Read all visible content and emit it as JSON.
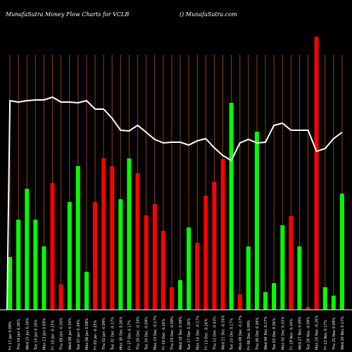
{
  "header": {
    "title": "MunafaSutra  Money Flow  Charts for VCLB",
    "credit": "() MunafaSutra.com"
  },
  "colors": {
    "background": "#000000",
    "bull": "#00ff00",
    "bear": "#ff0000",
    "grid": "#8B4513",
    "line": "#ffffff",
    "axis": "#ffffff"
  },
  "chart_data": {
    "type": "bar",
    "grid": true,
    "bars": [
      {
        "label": "Fri 17 Jan 0.09%",
        "value": 75,
        "dir": "up"
      },
      {
        "label": "Thu 16 Jan 0.26%",
        "value": 128,
        "dir": "up"
      },
      {
        "label": "Wed 15 Jan 0.34%",
        "value": 172,
        "dir": "up"
      },
      {
        "label": "Tue 14 Jan 0.26%",
        "value": 128,
        "dir": "up"
      },
      {
        "label": "Mon 13 Jan 0.09%",
        "value": 90,
        "dir": "up"
      },
      {
        "label": "Fri 10 Jan -0.25%",
        "value": 180,
        "dir": "down"
      },
      {
        "label": "Thu 09 Jan -0.26%",
        "value": 36,
        "dir": "down"
      },
      {
        "label": "Wed 08 Jan 0.34%",
        "value": 153,
        "dir": "up"
      },
      {
        "label": "Tue 07 Jan 0.34%",
        "value": 204,
        "dir": "up"
      },
      {
        "label": "Mon 06 Jan 0.08%",
        "value": 54,
        "dir": "up"
      },
      {
        "label": "Fri 03 Jan -0.25%",
        "value": 153,
        "dir": "down"
      },
      {
        "label": "Thu 02 Jan -0.09%",
        "value": 215,
        "dir": "down"
      },
      {
        "label": "Tue 31 Dec -0.17%",
        "value": 204,
        "dir": "down"
      },
      {
        "label": "Mon 30 Dec 0.26%",
        "value": 157,
        "dir": "up"
      },
      {
        "label": "Fri 27 Dec 0.17%",
        "value": 215,
        "dir": "up"
      },
      {
        "label": "Thu 26 Dec -0.34%",
        "value": 194,
        "dir": "down"
      },
      {
        "label": "Tue 24 Dec -0.09%",
        "value": 134,
        "dir": "down"
      },
      {
        "label": "Mon 23 Dec -0.17%",
        "value": 150,
        "dir": "down"
      },
      {
        "label": "Fri 20 Dec -0.26%",
        "value": 112,
        "dir": "down"
      },
      {
        "label": "Thu 19 Dec -0.09%",
        "value": 32,
        "dir": "down"
      },
      {
        "label": "Wed 18 Dec 0.09%",
        "value": 42,
        "dir": "up"
      },
      {
        "label": "Tue 17 Dec 0.26%",
        "value": 117,
        "dir": "up"
      },
      {
        "label": "Mon 16 Dec -0.17%",
        "value": 95,
        "dir": "down"
      },
      {
        "label": "Fri 13 Dec -0.26%",
        "value": 162,
        "dir": "down"
      },
      {
        "label": "Thu 12 Dec -0.43%",
        "value": 182,
        "dir": "down"
      },
      {
        "label": "Wed 11 Dec -0.26%",
        "value": 214,
        "dir": "down"
      },
      {
        "label": "Tue 10 Dec 0.17%",
        "value": 294,
        "dir": "up"
      },
      {
        "label": "Mon 09 Dec -0.17%",
        "value": 22,
        "dir": "down"
      },
      {
        "label": "Fri 06 Dec 0.09%",
        "value": 90,
        "dir": "up"
      },
      {
        "label": "Thu 05 Dec 0.34%",
        "value": 253,
        "dir": "up"
      },
      {
        "label": "Wed 04 Dec 0.17%",
        "value": 25,
        "dir": "up"
      },
      {
        "label": "Tue 03 Dec 0.26%",
        "value": 38,
        "dir": "up"
      },
      {
        "label": "Mon 02 Dec 0.43%",
        "value": 120,
        "dir": "up"
      },
      {
        "label": "Fri 29 Nov -0.34%",
        "value": 133,
        "dir": "down"
      },
      {
        "label": "Wed 27 Nov 0.09%",
        "value": 90,
        "dir": "up"
      },
      {
        "label": "Tue 26 Nov -0.09%",
        "value": 4,
        "dir": "down"
      },
      {
        "label": "Mon 25 Nov -0.26%",
        "value": 388,
        "dir": "down"
      },
      {
        "label": "Fri 22 Nov 0.17%",
        "value": 32,
        "dir": "up"
      },
      {
        "label": "Thu 21 Nov 0.09%",
        "value": 20,
        "dir": "up"
      },
      {
        "label": "Wed 20 Nov 0.17%",
        "value": 165,
        "dir": "up"
      }
    ],
    "price_line": [
      297,
      295,
      297,
      298,
      298,
      302,
      295,
      295,
      294,
      297,
      285,
      285,
      272,
      255,
      254,
      262,
      252,
      242,
      237,
      238,
      238,
      234,
      240,
      243,
      230,
      219,
      212,
      237,
      242,
      237,
      238,
      262,
      265,
      255,
      255,
      255,
      225,
      229,
      243,
      252
    ],
    "y_range": [
      0,
      400
    ]
  }
}
